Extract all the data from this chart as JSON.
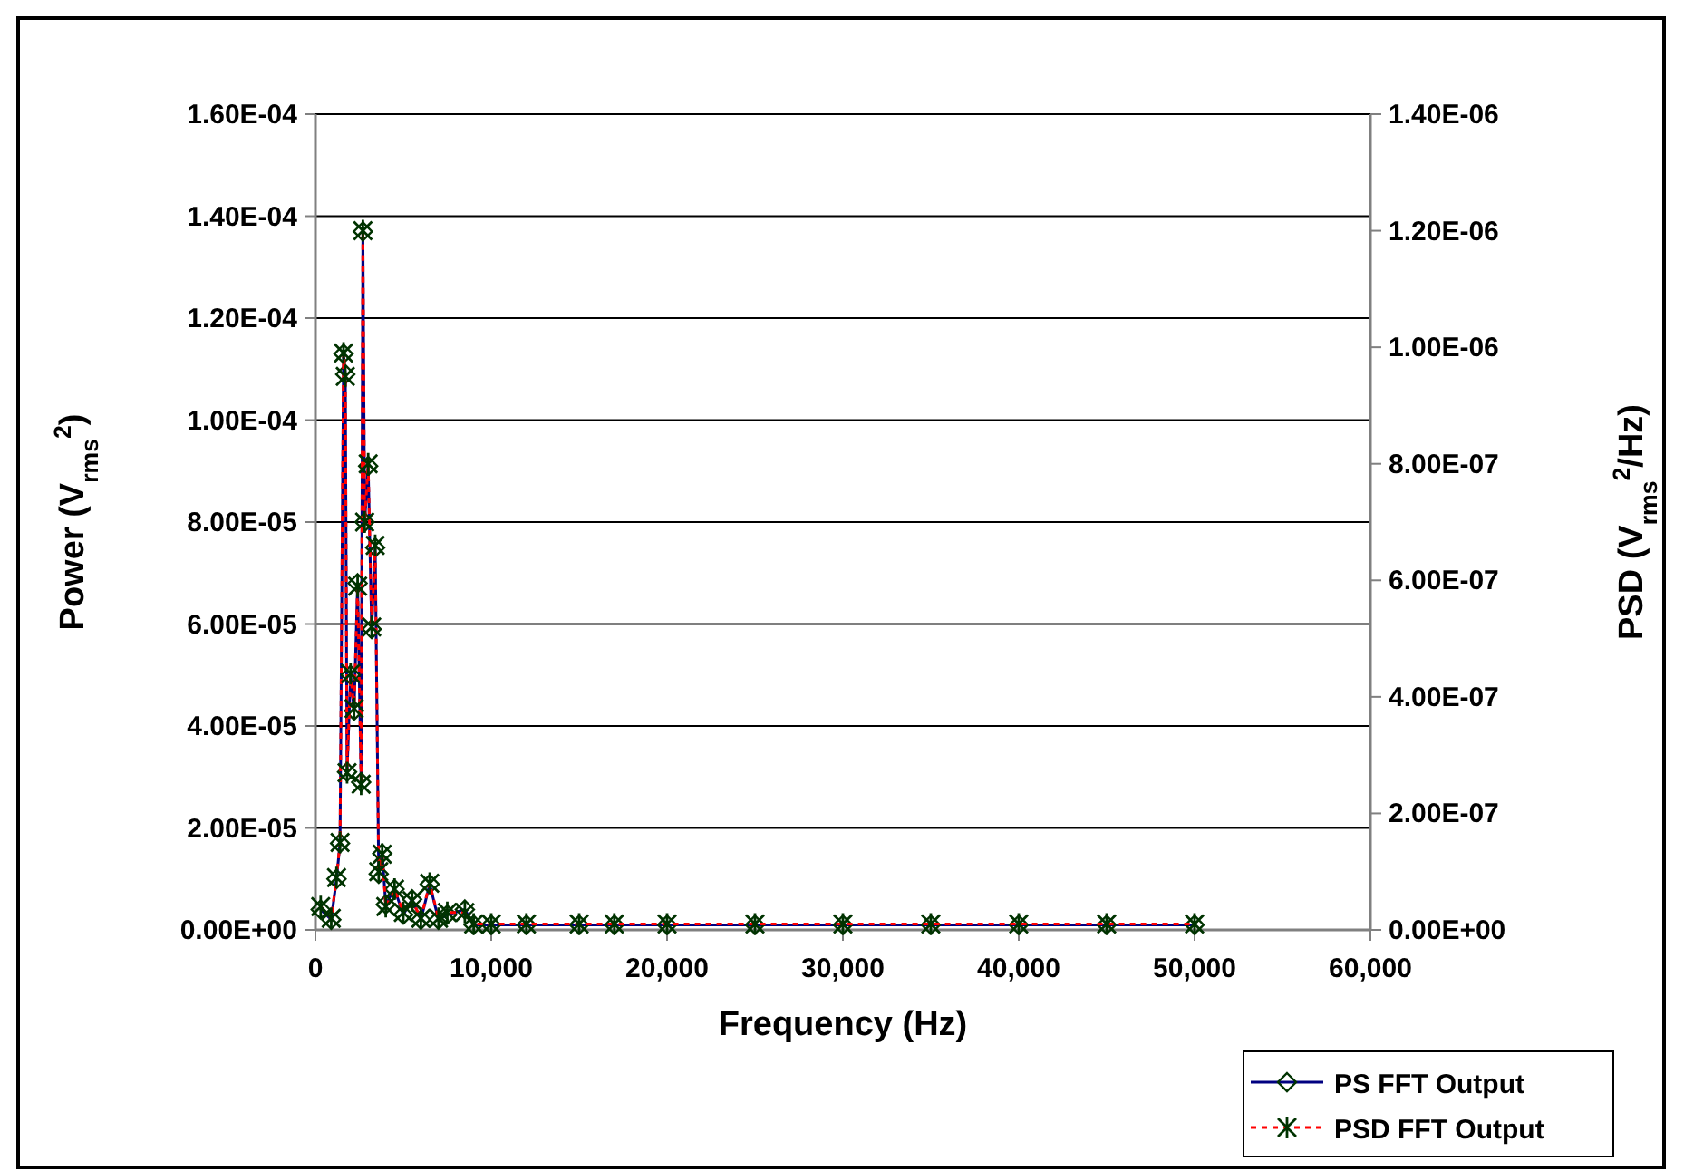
{
  "chart_data": {
    "type": "line",
    "xlabel": "Frequency (Hz)",
    "ylabel": "Power (V$_{rms}$$^{2}$)",
    "y2label": "PSD (V$_{rms}$$^{2}$/Hz)",
    "x": [
      300,
      900,
      1200,
      1400,
      1600,
      1700,
      1800,
      2000,
      2200,
      2400,
      2600,
      2700,
      2800,
      3000,
      3200,
      3400,
      3600,
      3800,
      4000,
      4500,
      5000,
      5500,
      6000,
      6500,
      7000,
      7500,
      8500,
      9000,
      10000,
      12000,
      15000,
      17000,
      20000,
      25000,
      30000,
      35000,
      40000,
      45000,
      50000
    ],
    "series": [
      {
        "name": "PS FFT Output",
        "color": "#000080",
        "marker": "diamond",
        "line_style": "solid",
        "values": [
          4e-06,
          2e-06,
          1e-05,
          1.7e-05,
          0.000113,
          0.000109,
          3.1e-05,
          5e-05,
          4.3e-05,
          6.8e-05,
          2.9e-05,
          0.000137,
          8e-05,
          9.1e-05,
          5.9e-05,
          7.5e-05,
          1.1e-05,
          1.5e-05,
          5e-06,
          8e-06,
          3e-06,
          6e-06,
          2e-06,
          9e-06,
          2e-06,
          3e-06,
          4e-06,
          1e-06,
          1e-06,
          1e-06,
          1e-06,
          1e-06,
          1e-06,
          1e-06,
          1e-06,
          1e-06,
          1e-06,
          1e-06,
          1e-06
        ]
      },
      {
        "name": "PSD FFT Output",
        "color": "#ff0000",
        "marker": "cross",
        "line_style": "dotted",
        "axis": "y2",
        "values": [
          4e-08,
          2e-08,
          9e-08,
          1.5e-07,
          9.9e-07,
          9.5e-07,
          2.7e-07,
          4.4e-07,
          3.8e-07,
          5.9e-07,
          2.5e-07,
          1.2e-06,
          7e-07,
          8e-07,
          5.2e-07,
          6.6e-07,
          1e-07,
          1.3e-07,
          4e-08,
          7e-08,
          3e-08,
          5e-08,
          2e-08,
          8e-08,
          2e-08,
          3e-08,
          3e-08,
          1e-08,
          1e-08,
          1e-08,
          1e-08,
          1e-08,
          1e-08,
          1e-08,
          1e-08,
          1e-08,
          1e-08,
          1e-08,
          1e-08
        ]
      }
    ],
    "xlim": [
      0,
      60000
    ],
    "xticks": [
      0,
      {
        "value": 10000,
        "label": "10,000"
      },
      {
        "value": 20000,
        "label": "20,000"
      },
      {
        "value": 30000,
        "label": "30,000"
      },
      {
        "value": 40000,
        "label": "40,000"
      },
      {
        "value": 50000,
        "label": "50,000"
      },
      {
        "value": 60000,
        "label": "60,000"
      }
    ],
    "ylim": [
      0,
      0.00016
    ],
    "yticks": [
      {
        "value": 0,
        "label": "0.00E+00"
      },
      {
        "value": 2e-05,
        "label": "2.00E-05"
      },
      {
        "value": 4e-05,
        "label": "4.00E-05"
      },
      {
        "value": 6e-05,
        "label": "6.00E-05"
      },
      {
        "value": 8e-05,
        "label": "8.00E-05"
      },
      {
        "value": 0.0001,
        "label": "1.00E-04"
      },
      {
        "value": 0.00012,
        "label": "1.20E-04"
      },
      {
        "value": 0.00014,
        "label": "1.40E-04"
      },
      {
        "value": 0.00016,
        "label": "1.60E-04"
      }
    ],
    "y2lim": [
      0,
      1.4e-06
    ],
    "y2ticks": [
      {
        "value": 0,
        "label": "0.00E+00"
      },
      {
        "value": 2e-07,
        "label": "2.00E-07"
      },
      {
        "value": 4e-07,
        "label": "4.00E-07"
      },
      {
        "value": 6e-07,
        "label": "6.00E-07"
      },
      {
        "value": 8e-07,
        "label": "8.00E-07"
      },
      {
        "value": 1e-06,
        "label": "1.00E-06"
      },
      {
        "value": 1.2e-06,
        "label": "1.20E-06"
      },
      {
        "value": 1.4e-06,
        "label": "1.40E-06"
      }
    ],
    "grid": "y",
    "legend": "bottom right"
  }
}
